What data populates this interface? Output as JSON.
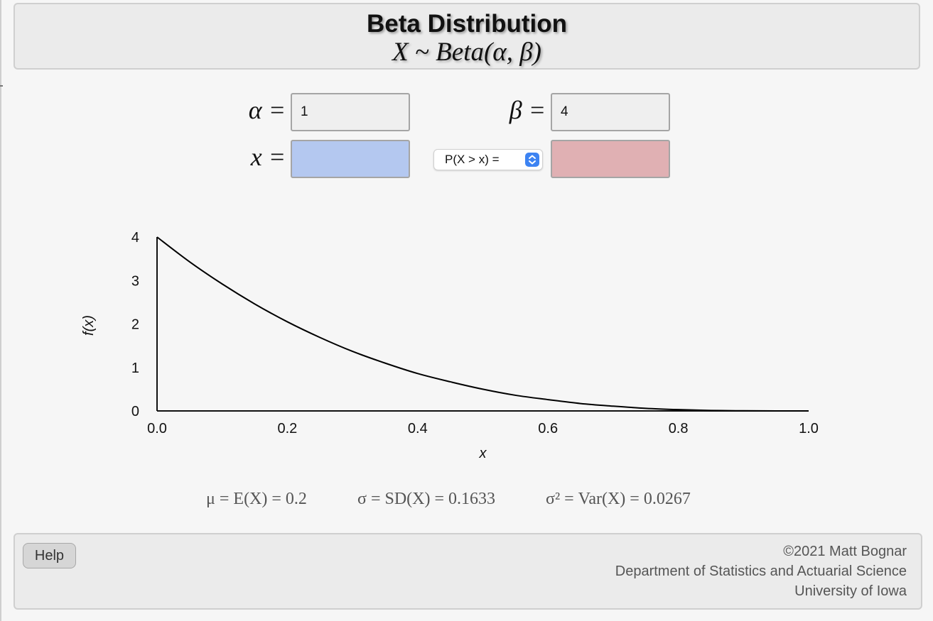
{
  "header": {
    "title": "Beta Distribution",
    "subtitle": "X ~ Beta(α, β)"
  },
  "inputs": {
    "alpha_label": "α =",
    "alpha_value": "1",
    "beta_label": "β =",
    "beta_value": "4",
    "x_label": "x =",
    "x_value": "",
    "prob_select_label": "P(X > x) =",
    "prob_output": ""
  },
  "chart_data": {
    "type": "line",
    "xlabel": "x",
    "ylabel": "f(x)",
    "xlim": [
      0,
      1
    ],
    "ylim": [
      0,
      4
    ],
    "x_ticks": [
      "0.0",
      "0.2",
      "0.4",
      "0.6",
      "0.8",
      "1.0"
    ],
    "y_ticks": [
      "0",
      "1",
      "2",
      "3",
      "4"
    ],
    "series": [
      {
        "x": [
          0.0,
          0.05,
          0.1,
          0.15,
          0.2,
          0.25,
          0.3,
          0.35,
          0.4,
          0.45,
          0.5,
          0.55,
          0.6,
          0.65,
          0.7,
          0.75,
          0.8,
          0.85,
          0.9,
          0.95,
          1.0
        ],
        "y": [
          4.0,
          3.43,
          2.92,
          2.46,
          2.05,
          1.69,
          1.37,
          1.1,
          0.86,
          0.67,
          0.5,
          0.36,
          0.26,
          0.17,
          0.11,
          0.06,
          0.03,
          0.01,
          0.004,
          0.0005,
          0.0
        ]
      }
    ],
    "line_color": "#000000"
  },
  "stats": {
    "mean": "μ = E(X) = 0.2",
    "sd": "σ = SD(X) = 0.1633",
    "variance": "σ² = Var(X) = 0.0267"
  },
  "footer": {
    "help_label": "Help",
    "credit_line1": "©2021 Matt Bognar",
    "credit_line2": "Department of Statistics and Actuarial Science",
    "credit_line3": "University of Iowa"
  },
  "colors": {
    "x_input_bg": "#b4c8f0",
    "prob_output_bg": "#e0b0b3",
    "select_arrow": "#3d83f2"
  }
}
